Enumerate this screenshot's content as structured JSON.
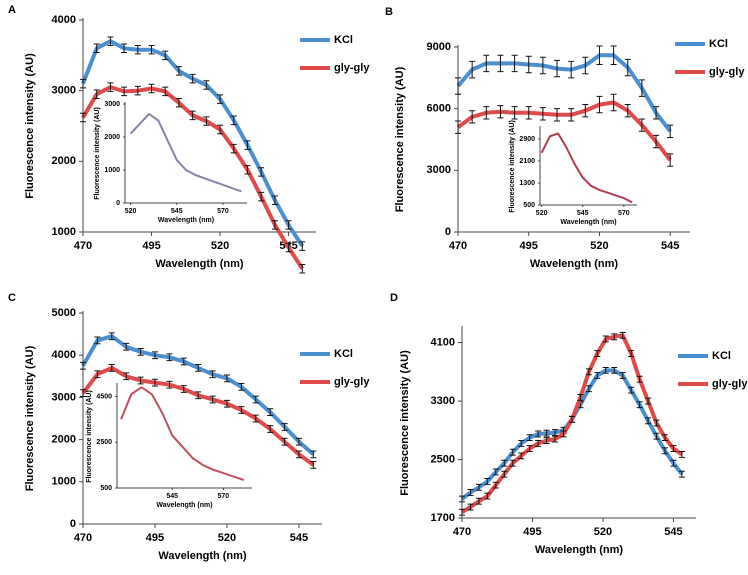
{
  "chart_data": [
    {
      "type": "line",
      "panel_label": "A",
      "xlabel": "Wavelength (nm)",
      "ylabel": "Fluorescence intensity (AU)",
      "legend": "upper right",
      "x": [
        470,
        475,
        480,
        485,
        490,
        495,
        500,
        505,
        510,
        515,
        520,
        525,
        530,
        535,
        540,
        545,
        550
      ],
      "xlim": [
        470,
        555
      ],
      "xticks": [
        470,
        495,
        520,
        545
      ],
      "ylim": [
        1000,
        4000
      ],
      "yticks": [
        1000,
        2000,
        3000,
        4000
      ],
      "series": [
        {
          "name": "KCl",
          "color": "#4a8fd0",
          "values": [
            3100,
            3600,
            3700,
            3600,
            3580,
            3580,
            3500,
            3280,
            3170,
            3080,
            2880,
            2580,
            2230,
            1850,
            1450,
            1100,
            800
          ],
          "errors": [
            60,
            60,
            60,
            60,
            60,
            60,
            60,
            60,
            60,
            60,
            60,
            60,
            60,
            60,
            60,
            60,
            60
          ]
        },
        {
          "name": "gly-gly",
          "color": "#e04a4a",
          "values": [
            2620,
            2950,
            3050,
            2990,
            3000,
            3030,
            2990,
            2830,
            2650,
            2570,
            2450,
            2180,
            1880,
            1500,
            1100,
            780,
            480
          ],
          "errors": [
            60,
            60,
            60,
            60,
            60,
            60,
            60,
            60,
            60,
            60,
            60,
            60,
            60,
            60,
            60,
            60,
            60
          ]
        }
      ],
      "inset": {
        "type": "line",
        "xlabel": "Wavelength (nm)",
        "ylabel": "Fluorescence intensity (AU)",
        "x": [
          520,
          525,
          530,
          535,
          540,
          545,
          550,
          555,
          560,
          565,
          570,
          575,
          580
        ],
        "xlim": [
          517,
          583
        ],
        "xticks": [
          520,
          545,
          570
        ],
        "ylim": [
          0,
          3000
        ],
        "yticks": [
          0,
          1000,
          2000,
          3000
        ],
        "series": [
          {
            "color": "#8a7fa8",
            "values": [
              2100,
              2400,
              2700,
              2500,
              1900,
              1300,
              1000,
              850,
              750,
              650,
              550,
              450,
              350
            ]
          }
        ]
      }
    },
    {
      "type": "line",
      "panel_label": "B",
      "xlabel": "Wavelength (nm)",
      "ylabel": "Fluorescence intensity (AU)",
      "legend": "upper right",
      "x": [
        470,
        475,
        480,
        485,
        490,
        495,
        500,
        505,
        510,
        515,
        520,
        525,
        530,
        535,
        540,
        545
      ],
      "xlim": [
        470,
        552
      ],
      "xticks": [
        470,
        495,
        520,
        545
      ],
      "ylim": [
        0,
        9000
      ],
      "yticks": [
        0,
        3000,
        6000,
        9000
      ],
      "series": [
        {
          "name": "KCl",
          "color": "#4a8fd0",
          "values": [
            7100,
            7900,
            8200,
            8200,
            8200,
            8150,
            8100,
            7950,
            7900,
            8100,
            8600,
            8600,
            8000,
            7000,
            5800,
            4900
          ],
          "errors": [
            400,
            400,
            400,
            400,
            400,
            400,
            400,
            400,
            400,
            400,
            450,
            450,
            400,
            400,
            300,
            300
          ]
        },
        {
          "name": "gly-gly",
          "color": "#e04a4a",
          "values": [
            5100,
            5600,
            5800,
            5850,
            5800,
            5800,
            5750,
            5700,
            5700,
            5900,
            6200,
            6300,
            5900,
            5200,
            4400,
            3500
          ],
          "errors": [
            300,
            300,
            300,
            300,
            300,
            300,
            300,
            300,
            300,
            300,
            400,
            400,
            300,
            300,
            300,
            300
          ]
        }
      ],
      "inset": {
        "type": "line",
        "xlabel": "Wavelength (nm)",
        "ylabel": "Fluorescence intensity (AU)",
        "x": [
          520,
          525,
          530,
          535,
          540,
          545,
          550,
          555,
          560,
          565,
          570,
          575
        ],
        "xlim": [
          519,
          578
        ],
        "xticks": [
          520,
          545,
          570
        ],
        "ylim": [
          500,
          3300
        ],
        "yticks": [
          500,
          1300,
          2100,
          2900
        ],
        "series": [
          {
            "color": "#b04050",
            "values": [
              2400,
              3000,
              3100,
              2600,
              2000,
              1500,
              1200,
              1050,
              950,
              850,
              750,
              600
            ]
          }
        ]
      }
    },
    {
      "type": "line",
      "panel_label": "C",
      "xlabel": "Wavelength (nm)",
      "ylabel": "Fluorescence intensity (AU)",
      "legend": "upper right",
      "x": [
        470,
        475,
        480,
        485,
        490,
        495,
        500,
        505,
        510,
        515,
        520,
        525,
        530,
        535,
        540,
        545,
        550
      ],
      "xlim": [
        470,
        553
      ],
      "xticks": [
        470,
        495,
        520,
        545
      ],
      "ylim": [
        0,
        5000
      ],
      "yticks": [
        0,
        1000,
        2000,
        3000,
        4000,
        5000
      ],
      "series": [
        {
          "name": "KCl",
          "color": "#4a8fd0",
          "values": [
            3750,
            4350,
            4450,
            4200,
            4080,
            4000,
            3950,
            3850,
            3700,
            3550,
            3450,
            3250,
            2950,
            2650,
            2300,
            1950,
            1650
          ],
          "errors": [
            80,
            80,
            80,
            80,
            80,
            80,
            80,
            80,
            80,
            80,
            80,
            80,
            80,
            80,
            80,
            80,
            80
          ]
        },
        {
          "name": "gly-gly",
          "color": "#e04a4a",
          "values": [
            3100,
            3550,
            3700,
            3500,
            3400,
            3350,
            3300,
            3200,
            3050,
            2950,
            2850,
            2700,
            2500,
            2250,
            1950,
            1650,
            1400
          ],
          "errors": [
            80,
            80,
            80,
            80,
            80,
            80,
            80,
            80,
            80,
            80,
            80,
            80,
            80,
            80,
            80,
            80,
            80
          ]
        }
      ],
      "inset": {
        "type": "line",
        "xlabel": "Wavelength (nm)",
        "ylabel": "Fluorescence intensity (AU)",
        "x": [
          520,
          525,
          530,
          535,
          540,
          545,
          550,
          555,
          560,
          565,
          570,
          575,
          580
        ],
        "xlim": [
          518,
          584
        ],
        "xticks": [
          545,
          570
        ],
        "ylim": [
          500,
          5000
        ],
        "yticks": [
          500,
          2500,
          4500
        ],
        "series": [
          {
            "color": "#c05060",
            "values": [
              3500,
              4600,
              4900,
              4600,
              3800,
              2800,
              2300,
              1800,
              1500,
              1300,
              1150,
              1000,
              850
            ]
          }
        ]
      }
    },
    {
      "type": "line",
      "panel_label": "D",
      "xlabel": "Wavelength (nm)",
      "ylabel": "Fluorescence intensity (AU)",
      "legend": "upper right",
      "x": [
        470,
        473,
        476,
        479,
        482,
        485,
        488,
        491,
        494,
        497,
        500,
        503,
        506,
        509,
        512,
        515,
        518,
        521,
        524,
        527,
        530,
        533,
        536,
        539,
        542,
        545,
        548
      ],
      "xlim": [
        470,
        553
      ],
      "xticks": [
        470,
        495,
        520,
        545
      ],
      "ylim": [
        1700,
        4300
      ],
      "yticks": [
        1700,
        2500,
        3300,
        4100
      ],
      "series": [
        {
          "name": "KCl",
          "color": "#4a8fd0",
          "values": [
            1960,
            2050,
            2120,
            2200,
            2330,
            2450,
            2600,
            2720,
            2800,
            2850,
            2860,
            2870,
            2900,
            3050,
            3250,
            3470,
            3650,
            3720,
            3720,
            3650,
            3450,
            3250,
            3030,
            2820,
            2620,
            2450,
            2300
          ],
          "errors": [
            40,
            40,
            40,
            40,
            40,
            40,
            40,
            40,
            40,
            40,
            40,
            40,
            40,
            40,
            40,
            40,
            40,
            40,
            40,
            40,
            40,
            40,
            40,
            40,
            40,
            40,
            40
          ]
        },
        {
          "name": "gly-gly",
          "color": "#e04a4a",
          "values": [
            1780,
            1850,
            1930,
            2000,
            2150,
            2300,
            2450,
            2550,
            2650,
            2720,
            2760,
            2780,
            2850,
            3050,
            3350,
            3700,
            3950,
            4150,
            4180,
            4200,
            3950,
            3600,
            3300,
            3000,
            2800,
            2650,
            2570
          ],
          "errors": [
            40,
            40,
            40,
            40,
            40,
            40,
            40,
            40,
            40,
            40,
            40,
            40,
            40,
            40,
            40,
            40,
            40,
            40,
            40,
            40,
            40,
            40,
            40,
            40,
            40,
            40,
            40
          ]
        }
      ]
    }
  ]
}
